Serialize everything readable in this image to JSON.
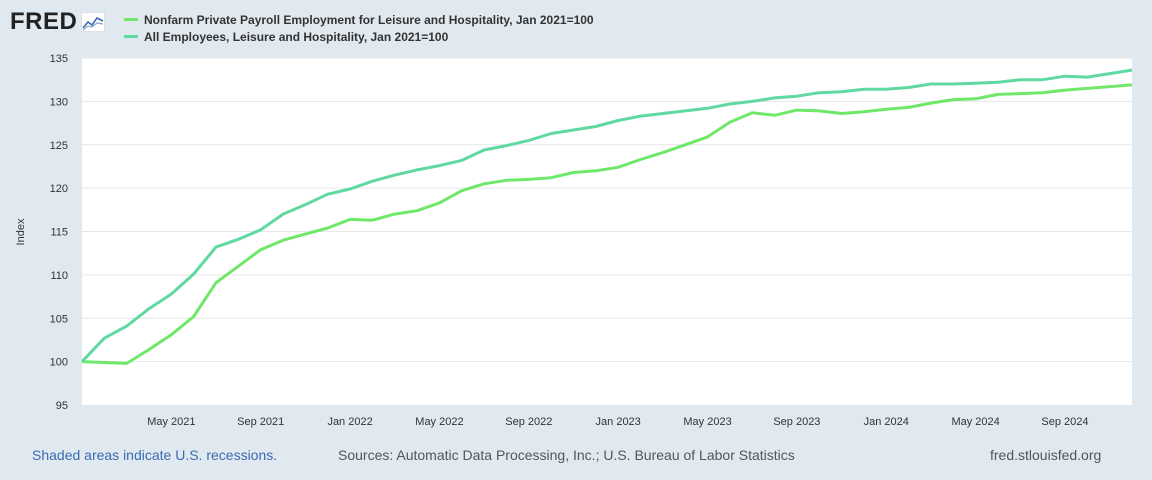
{
  "logo": {
    "text": "FRED",
    "icon": "line-chart-icon"
  },
  "chart_data": {
    "type": "line",
    "ylabel": "Index",
    "ylim": [
      95,
      135
    ],
    "yticks": [
      95,
      100,
      105,
      110,
      115,
      120,
      125,
      130,
      135
    ],
    "x_start": "2021-01",
    "x_end": "2024-12",
    "xticks": [
      {
        "date": "2021-05",
        "label": "May 2021"
      },
      {
        "date": "2021-09",
        "label": "Sep 2021"
      },
      {
        "date": "2022-01",
        "label": "Jan 2022"
      },
      {
        "date": "2022-05",
        "label": "May 2022"
      },
      {
        "date": "2022-09",
        "label": "Sep 2022"
      },
      {
        "date": "2023-01",
        "label": "Jan 2023"
      },
      {
        "date": "2023-05",
        "label": "May 2023"
      },
      {
        "date": "2023-09",
        "label": "Sep 2023"
      },
      {
        "date": "2024-01",
        "label": "Jan 2024"
      },
      {
        "date": "2024-05",
        "label": "May 2024"
      },
      {
        "date": "2024-09",
        "label": "Sep 2024"
      }
    ],
    "x": [
      "2021-01",
      "2021-02",
      "2021-03",
      "2021-04",
      "2021-05",
      "2021-06",
      "2021-07",
      "2021-08",
      "2021-09",
      "2021-10",
      "2021-11",
      "2021-12",
      "2022-01",
      "2022-02",
      "2022-03",
      "2022-04",
      "2022-05",
      "2022-06",
      "2022-07",
      "2022-08",
      "2022-09",
      "2022-10",
      "2022-11",
      "2022-12",
      "2023-01",
      "2023-02",
      "2023-03",
      "2023-04",
      "2023-05",
      "2023-06",
      "2023-07",
      "2023-08",
      "2023-09",
      "2023-10",
      "2023-11",
      "2023-12",
      "2024-01",
      "2024-02",
      "2024-03",
      "2024-04",
      "2024-05",
      "2024-06",
      "2024-07",
      "2024-08",
      "2024-09",
      "2024-10",
      "2024-11",
      "2024-12"
    ],
    "series": [
      {
        "name": "Nonfarm Private Payroll Employment for Leisure and Hospitality, Jan 2021=100",
        "color": "#6fe86a",
        "values": [
          100,
          99.9,
          99.8,
          101.4,
          103.1,
          105.2,
          109.1,
          111.0,
          112.9,
          114.0,
          114.7,
          115.4,
          116.4,
          116.3,
          117.0,
          117.4,
          118.3,
          119.7,
          120.5,
          120.9,
          121.0,
          121.2,
          121.8,
          122.0,
          122.4,
          123.3,
          124.1,
          125.0,
          125.9,
          127.6,
          128.7,
          128.4,
          129.0,
          128.9,
          128.6,
          128.8,
          129.1,
          129.3,
          129.8,
          130.2,
          130.3,
          130.8,
          130.9,
          131.0,
          131.3,
          131.5,
          131.7,
          131.9
        ]
      },
      {
        "name": "All Employees, Leisure and Hospitality, Jan 2021=100",
        "color": "#5fd9a0",
        "values": [
          100,
          102.7,
          104.1,
          106.1,
          107.8,
          110.1,
          113.2,
          114.1,
          115.2,
          117.0,
          118.1,
          119.3,
          119.9,
          120.8,
          121.5,
          122.1,
          122.6,
          123.2,
          124.4,
          124.9,
          125.5,
          126.3,
          126.7,
          127.1,
          127.8,
          128.3,
          128.6,
          128.9,
          129.2,
          129.7,
          130.0,
          130.4,
          130.6,
          131.0,
          131.1,
          131.4,
          131.4,
          131.6,
          132.0,
          132.0,
          132.1,
          132.2,
          132.5,
          132.5,
          132.9,
          132.8,
          133.2,
          133.6
        ]
      }
    ],
    "grid": true,
    "legend_position": "top-left"
  },
  "footer": {
    "recessions_text": "Shaded areas indicate U.S. recessions.",
    "sources_text": "Sources: Automatic Data Processing, Inc.; U.S. Bureau of Labor Statistics",
    "site_text": "fred.stlouisfed.org"
  }
}
